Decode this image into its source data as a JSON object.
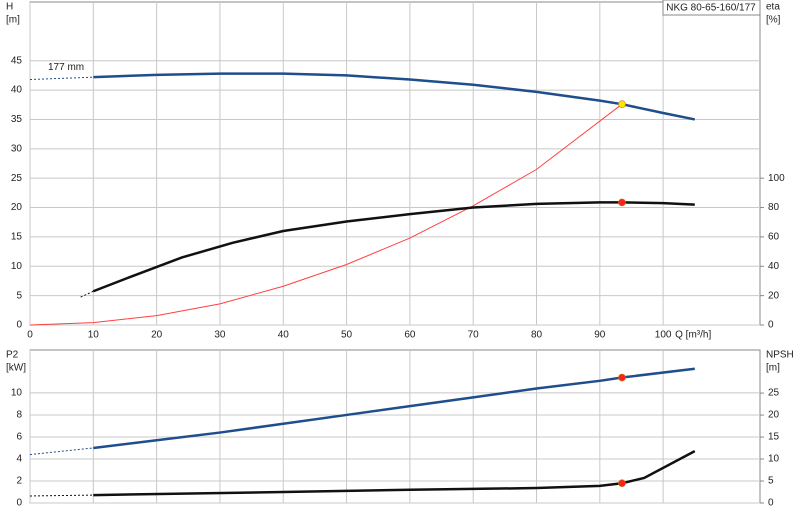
{
  "chart_data": [
    {
      "type": "line",
      "title": "NKG 80-65-160/177",
      "xlabel": "Q [m³/h]",
      "ylabel": [
        "H",
        "[m]"
      ],
      "y2label": [
        "eta",
        "[%]"
      ],
      "xlim": [
        0,
        115.3
      ],
      "ylim": [
        0,
        55
      ],
      "y2lim": [
        0,
        220
      ],
      "xticks": [
        0,
        10,
        20,
        30,
        40,
        50,
        60,
        70,
        80,
        90,
        100
      ],
      "yticks": [
        0,
        5,
        10,
        15,
        20,
        25,
        30,
        35,
        40,
        45
      ],
      "y2ticks": [
        0,
        20,
        40,
        60,
        80,
        100
      ],
      "show_xtick_labels": true,
      "grid": true,
      "annotations": [
        "177 mm"
      ],
      "series": [
        {
          "color": "#1f4e8c",
          "dash": true,
          "x": [
            0,
            10
          ],
          "values": [
            41.8,
            42.2
          ]
        },
        {
          "color": "#1f4e8c",
          "x": [
            10,
            20,
            30,
            40,
            50,
            60,
            70,
            80,
            90,
            93.5,
            100,
            105
          ],
          "values": [
            42.2,
            42.6,
            42.8,
            42.8,
            42.5,
            41.8,
            40.9,
            39.7,
            38.2,
            37.6,
            36.1,
            35
          ]
        },
        {
          "color": "#ff4040",
          "thin": true,
          "x": [
            0,
            10,
            20,
            30,
            40,
            50,
            60,
            70,
            80,
            93.5
          ],
          "values": [
            0,
            0.4,
            1.6,
            3.6,
            6.6,
            10.3,
            14.8,
            20.3,
            26.5,
            37.6
          ]
        },
        {
          "color": "#111111",
          "dash": true,
          "axis": "y2",
          "x": [
            8,
            10
          ],
          "values": [
            19,
            23
          ]
        },
        {
          "color": "#111111",
          "axis": "y2",
          "x": [
            10,
            16,
            24,
            32,
            40,
            50,
            60,
            70,
            80,
            90,
            93.5,
            100,
            105
          ],
          "values": [
            23,
            33,
            46,
            56,
            64,
            70.5,
            75.5,
            80,
            82.5,
            83.5,
            83.5,
            83,
            82
          ]
        }
      ],
      "markers": [
        {
          "color": "#ffe600",
          "x": 93.5,
          "y": 37.6
        },
        {
          "color": "#ff2020",
          "axis": "y2",
          "x": 93.5,
          "y": 83.5
        }
      ]
    },
    {
      "type": "line",
      "ylabel": [
        "P2",
        "[kW]"
      ],
      "y2label": [
        "NPSH",
        "[m]"
      ],
      "xlim": [
        0,
        115.3
      ],
      "ylim": [
        0,
        13.9
      ],
      "y2lim": [
        0,
        34.8
      ],
      "xticks": [
        0,
        10,
        20,
        30,
        40,
        50,
        60,
        70,
        80,
        90,
        100
      ],
      "yticks": [
        0,
        2,
        4,
        6,
        8,
        10
      ],
      "y2ticks": [
        0,
        5,
        10,
        15,
        20,
        25
      ],
      "show_xtick_labels": false,
      "grid": true,
      "series": [
        {
          "color": "#1f4e8c",
          "dash": true,
          "x": [
            0,
            10
          ],
          "values": [
            4.4,
            5.0
          ]
        },
        {
          "color": "#1f4e8c",
          "x": [
            10,
            20,
            30,
            40,
            50,
            60,
            70,
            80,
            90,
            93.5,
            105
          ],
          "values": [
            5.0,
            5.7,
            6.4,
            7.2,
            8.0,
            8.8,
            9.6,
            10.4,
            11.1,
            11.4,
            12.2
          ]
        },
        {
          "color": "#111111",
          "dash": true,
          "axis": "y2",
          "x": [
            0,
            10
          ],
          "values": [
            1.6,
            1.8
          ]
        },
        {
          "color": "#111111",
          "axis": "y2",
          "x": [
            10,
            40,
            60,
            80,
            90,
            93.5,
            97,
            105
          ],
          "values": [
            1.8,
            2.5,
            3.0,
            3.4,
            3.9,
            4.5,
            5.7,
            11.8
          ]
        }
      ],
      "markers": [
        {
          "color": "#ff2020",
          "x": 93.5,
          "y": 11.4
        },
        {
          "color": "#ff2020",
          "axis": "y2",
          "x": 93.5,
          "y": 4.5
        }
      ]
    }
  ]
}
